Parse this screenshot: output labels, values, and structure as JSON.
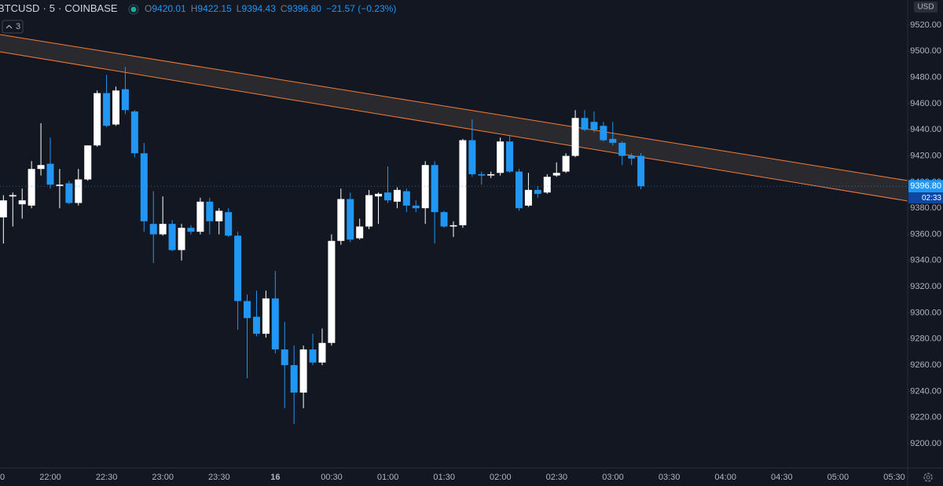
{
  "chart_data": {
    "type": "candlestick",
    "header": {
      "symbol": "BTCUSD",
      "interval": "5",
      "exchange": "COINBASE",
      "ohlc": [
        {
          "label": "O",
          "value": "9420.01"
        },
        {
          "label": "H",
          "value": "9422.15"
        },
        {
          "label": "L",
          "value": "9394.43"
        },
        {
          "label": "C",
          "value": "9396.80"
        }
      ],
      "change": "−21.57 (−0.23%)",
      "indicators": "3"
    },
    "currency": "USD",
    "x": [
      "21:35",
      "21:40",
      "21:45",
      "21:50",
      "21:55",
      "22:00",
      "22:05",
      "22:10",
      "22:15",
      "22:20",
      "22:25",
      "22:30",
      "22:35",
      "22:40",
      "22:45",
      "22:50",
      "22:55",
      "23:00",
      "23:05",
      "23:10",
      "23:15",
      "23:20",
      "23:25",
      "23:30",
      "23:35",
      "23:40",
      "23:45",
      "23:50",
      "23:55",
      "00:00",
      "00:05",
      "00:10",
      "00:15",
      "00:20",
      "00:25",
      "00:30",
      "00:35",
      "00:40",
      "00:45",
      "00:50",
      "00:55",
      "01:00",
      "01:05",
      "01:10",
      "01:15",
      "01:20",
      "01:25",
      "01:30",
      "01:35",
      "01:40",
      "01:45",
      "01:50",
      "01:55",
      "02:00",
      "02:05",
      "02:10",
      "02:15",
      "02:20",
      "02:25",
      "02:30",
      "02:35",
      "02:40",
      "02:45",
      "02:50",
      "02:55",
      "03:00",
      "03:05",
      "03:10",
      "03:15"
    ],
    "open": [
      9373,
      9389,
      9383,
      9382,
      9410,
      9414,
      9397,
      9399,
      9384,
      9402,
      9428,
      9468,
      9444,
      9471,
      9454,
      9422,
      9368,
      9360,
      9368,
      9348,
      9365,
      9362,
      9385,
      9370,
      9377,
      9359,
      9309,
      9297,
      9284,
      9311,
      9272,
      9260,
      9239,
      9272,
      9262,
      9277,
      9355,
      9387,
      9357,
      9366,
      9389,
      9392,
      9385,
      9393,
      9382,
      9380,
      9413,
      9377,
      9366,
      9367,
      9432,
      9406,
      9405,
      9407,
      9431,
      9408,
      9382,
      9394,
      9392,
      9405,
      9408,
      9420,
      9449,
      9446,
      9443,
      9433,
      9430,
      9420,
      9420.01
    ],
    "high": [
      9390,
      9392,
      9395,
      9416,
      9445,
      9434,
      9410,
      9401,
      9410,
      9428,
      9470,
      9482,
      9473,
      9488,
      9455,
      9430,
      9393,
      9389,
      9371,
      9368,
      9367,
      9388,
      9388,
      9380,
      9380,
      9362,
      9314,
      9317,
      9317,
      9332,
      9293,
      9275,
      9275,
      9284,
      9288,
      9360,
      9395,
      9392,
      9372,
      9394,
      9392,
      9412,
      9396,
      9395,
      9386,
      9416,
      9416,
      9378,
      9370,
      9433,
      9448,
      9408,
      9408,
      9434,
      9436,
      9410,
      9407,
      9397,
      9406,
      9415,
      9422,
      9455,
      9455,
      9454,
      9446,
      9446,
      9431,
      9422,
      9422.15
    ],
    "low": [
      9353,
      9366,
      9372,
      9380,
      9405,
      9395,
      9380,
      9383,
      9382,
      9401,
      9427,
      9442,
      9443,
      9452,
      9419,
      9362,
      9338,
      9359,
      9347,
      9340,
      9360,
      9360,
      9360,
      9360,
      9358,
      9287,
      9250,
      9282,
      9281,
      9269,
      9227,
      9215,
      9227,
      9260,
      9260,
      9275,
      9352,
      9354,
      9356,
      9364,
      9368,
      9384,
      9380,
      9377,
      9377,
      9368,
      9353,
      9365,
      9358,
      9365,
      9404,
      9398,
      9403,
      9405,
      9407,
      9378,
      9381,
      9388,
      9391,
      9404,
      9407,
      9419,
      9439,
      9438,
      9431,
      9428,
      9413,
      9413,
      9394.43
    ],
    "close": [
      9386,
      9390,
      9386,
      9410,
      9413,
      9398,
      9398,
      9384,
      9402,
      9428,
      9468,
      9443,
      9470,
      9455,
      9422,
      9370,
      9360,
      9368,
      9348,
      9365,
      9362,
      9385,
      9370,
      9378,
      9359,
      9309,
      9296,
      9284,
      9311,
      9272,
      9260,
      9239,
      9272,
      9262,
      9277,
      9355,
      9387,
      9356,
      9366,
      9390,
      9391,
      9386,
      9394,
      9382,
      9380,
      9413,
      9377,
      9366,
      9367,
      9432,
      9406,
      9405,
      9406,
      9431,
      9408,
      9380,
      9394,
      9391,
      9404,
      9407,
      9420,
      9449,
      9440,
      9440,
      9432,
      9430,
      9420,
      9418,
      9396.8
    ],
    "up_color": "#ffffff",
    "down_color": "#2196f3",
    "ylim": [
      9182,
      9539.2
    ],
    "yticks": [
      {
        "value": 9200,
        "label": "9200.00"
      },
      {
        "value": 9220,
        "label": "9220.00"
      },
      {
        "value": 9240,
        "label": "9240.00"
      },
      {
        "value": 9260,
        "label": "9260.00"
      },
      {
        "value": 9280,
        "label": "9280.00"
      },
      {
        "value": 9300,
        "label": "9300.00"
      },
      {
        "value": 9320,
        "label": "9320.00"
      },
      {
        "value": 9340,
        "label": "9340.00"
      },
      {
        "value": 9360,
        "label": "9360.00"
      },
      {
        "value": 9380,
        "label": "9380.00"
      },
      {
        "value": 9400,
        "label": "9400.00"
      },
      {
        "value": 9420,
        "label": "9420.00"
      },
      {
        "value": 9440,
        "label": "9440.00"
      },
      {
        "value": 9460,
        "label": "9460.00"
      },
      {
        "value": 9480,
        "label": "9480.00"
      },
      {
        "value": 9500,
        "label": "9500.00"
      },
      {
        "value": 9520,
        "label": "9520.00"
      }
    ],
    "time_labels": [
      "0",
      "22:00",
      "22:30",
      "23:00",
      "23:30",
      "16",
      "00:30",
      "01:00",
      "01:30",
      "02:00",
      "02:30",
      "03:00",
      "03:30",
      "04:00",
      "04:30",
      "05:00",
      "05:30"
    ],
    "last_price": {
      "value": 9396.8,
      "label": "9396.80"
    },
    "countdown": "02:33"
  }
}
